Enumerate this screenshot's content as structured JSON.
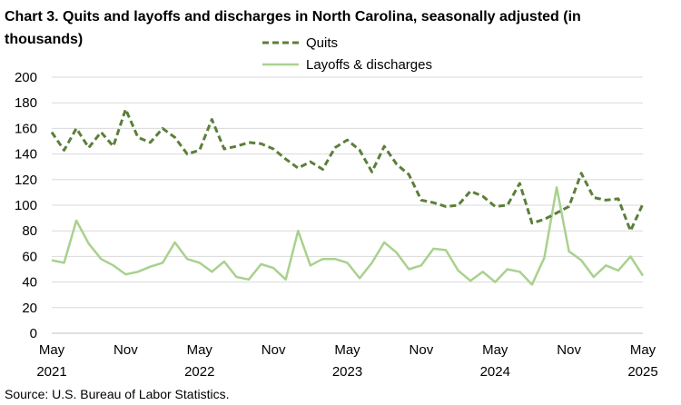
{
  "chart_data": {
    "type": "line",
    "title": "Chart 3. Quits and layoffs and discharges in North Carolina, seasonally adjusted (in thousands)",
    "title_lines": [
      "Chart 3. Quits and layoffs and discharges in North Carolina, seasonally adjusted (in",
      "thousands)"
    ],
    "source": "Source: U.S. Bureau of Labor Statistics.",
    "xlabel": "",
    "ylabel": "",
    "ylim": [
      0,
      200
    ],
    "yticks": [
      0,
      20,
      40,
      60,
      80,
      100,
      120,
      140,
      160,
      180,
      200
    ],
    "x_tick_labels": [
      {
        "month": "May",
        "year": "2021",
        "index": 0
      },
      {
        "month": "Nov",
        "year": "",
        "index": 6
      },
      {
        "month": "May",
        "year": "2022",
        "index": 12
      },
      {
        "month": "Nov",
        "year": "",
        "index": 18
      },
      {
        "month": "May",
        "year": "2023",
        "index": 24
      },
      {
        "month": "Nov",
        "year": "",
        "index": 30
      },
      {
        "month": "May",
        "year": "2024",
        "index": 36
      },
      {
        "month": "Nov",
        "year": "",
        "index": 42
      },
      {
        "month": "May",
        "year": "2025",
        "index": 48
      }
    ],
    "x_range": [
      "2021-05",
      "2025-05"
    ],
    "grid": true,
    "legend_position": "top-center",
    "series": [
      {
        "name": "Quits",
        "style": "dashed",
        "color": "#5b7f3a",
        "values": [
          157,
          143,
          160,
          145,
          157,
          146,
          175,
          153,
          149,
          160,
          153,
          140,
          143,
          167,
          144,
          146,
          149,
          148,
          144,
          136,
          129,
          134,
          128,
          145,
          151,
          143,
          126,
          146,
          132,
          124,
          104,
          102,
          99,
          100,
          111,
          107,
          99,
          100,
          117,
          86,
          89,
          94,
          99,
          125,
          106,
          104,
          105,
          80,
          101
        ]
      },
      {
        "name": "Layoffs & discharges",
        "style": "solid",
        "color": "#a9d18e",
        "values": [
          57,
          55,
          88,
          70,
          58,
          53,
          46,
          48,
          52,
          55,
          71,
          58,
          55,
          48,
          56,
          44,
          42,
          54,
          51,
          42,
          80,
          53,
          58,
          58,
          55,
          43,
          55,
          71,
          63,
          50,
          53,
          66,
          65,
          49,
          41,
          48,
          40,
          50,
          48,
          38,
          59,
          114,
          64,
          57,
          44,
          53,
          49,
          60,
          45
        ]
      }
    ]
  }
}
